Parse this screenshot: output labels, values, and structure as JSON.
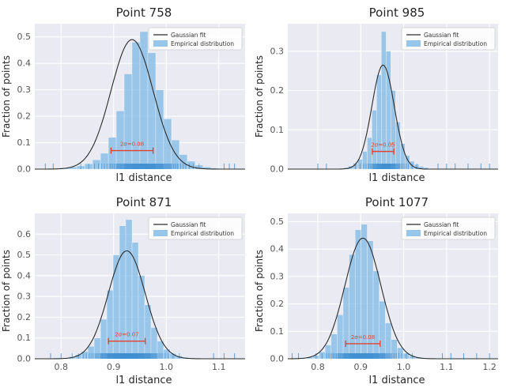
{
  "figure": {
    "xlabel": "l1 distance",
    "ylabel": "Fraction of points",
    "legend": [
      "Gaussian fit",
      "Empirical distribution"
    ],
    "colors": {
      "axes_bg": "#eaeaf2",
      "grid": "#ffffff",
      "bar": "#7db8e6",
      "bar_edge": "#ffffff",
      "line": "#2b2b2b",
      "rug": "#3f8fd2",
      "annotation": "#e0442e",
      "tick": "#555555"
    }
  },
  "chart_data": [
    {
      "type": "histogram",
      "overlay": "gaussian-line",
      "title": "Point 758",
      "xlabel": "l1 distance",
      "ylabel": "Fraction of points",
      "legend_labels": [
        "Gaussian fit",
        "Empirical distribution"
      ],
      "xlim": [
        0.75,
        1.15
      ],
      "ylim": [
        0,
        0.55
      ],
      "xticks": [
        0.8,
        0.9,
        1.0,
        1.1
      ],
      "show_xticklabels": false,
      "yticks": [
        0.0,
        0.1,
        0.2,
        0.3,
        0.4,
        0.5
      ],
      "bins": {
        "x0": 0.8,
        "width": 0.015,
        "heights": [
          0.005,
          0.008,
          0.012,
          0.02,
          0.035,
          0.06,
          0.12,
          0.22,
          0.36,
          0.48,
          0.52,
          0.44,
          0.3,
          0.19,
          0.11,
          0.055,
          0.03,
          0.015,
          0.008,
          0.004
        ]
      },
      "gaussian": {
        "amp": 0.49,
        "mean": 0.935,
        "sigma": 0.04
      },
      "annotation": {
        "label": "2σ=0.08",
        "center": 0.935,
        "halfwidth": 0.04,
        "y": 0.07
      },
      "rug_outliers": [
        0.77,
        0.785,
        1.11,
        1.12,
        1.13
      ]
    },
    {
      "type": "histogram",
      "overlay": "gaussian-line",
      "title": "Point 985",
      "xlabel": "l1 distance",
      "ylabel": "Fraction of points",
      "legend_labels": [
        "Gaussian fit",
        "Empirical distribution"
      ],
      "xlim": [
        0.73,
        1.22
      ],
      "ylim": [
        0,
        0.37
      ],
      "xticks": [
        0.8,
        0.9,
        1.0,
        1.1,
        1.2
      ],
      "show_xticklabels": false,
      "yticks": [
        0.0,
        0.1,
        0.2,
        0.3
      ],
      "bins": {
        "x0": 0.86,
        "width": 0.011,
        "heights": [
          0.004,
          0.008,
          0.015,
          0.025,
          0.045,
          0.08,
          0.15,
          0.24,
          0.35,
          0.3,
          0.2,
          0.12,
          0.065,
          0.035,
          0.02,
          0.012,
          0.007,
          0.004
        ]
      },
      "gaussian": {
        "amp": 0.265,
        "mean": 0.952,
        "sigma": 0.026
      },
      "annotation": {
        "label": "2σ=0.05",
        "center": 0.952,
        "halfwidth": 0.025,
        "y": 0.045
      },
      "rug_outliers": [
        0.8,
        0.82,
        1.08,
        1.1,
        1.12,
        1.15,
        1.18,
        1.2
      ]
    },
    {
      "type": "histogram",
      "overlay": "gaussian-line",
      "title": "Point 871",
      "xlabel": "l1 distance",
      "ylabel": "Fraction of points",
      "legend_labels": [
        "Gaussian fit",
        "Empirical distribution"
      ],
      "xlim": [
        0.75,
        1.15
      ],
      "ylim": [
        0,
        0.7
      ],
      "xticks": [
        0.8,
        0.9,
        1.0,
        1.1
      ],
      "show_xticklabels": true,
      "yticks": [
        0.0,
        0.1,
        0.2,
        0.3,
        0.4,
        0.5,
        0.6
      ],
      "bins": {
        "x0": 0.815,
        "width": 0.012,
        "heights": [
          0.01,
          0.02,
          0.035,
          0.06,
          0.1,
          0.19,
          0.33,
          0.5,
          0.64,
          0.67,
          0.56,
          0.4,
          0.26,
          0.15,
          0.085,
          0.045,
          0.025,
          0.013,
          0.007,
          0.004
        ]
      },
      "gaussian": {
        "amp": 0.52,
        "mean": 0.925,
        "sigma": 0.035
      },
      "annotation": {
        "label": "2σ=0.07",
        "center": 0.925,
        "halfwidth": 0.035,
        "y": 0.085
      },
      "rug_outliers": [
        0.78,
        0.8,
        1.09,
        1.11,
        1.13
      ]
    },
    {
      "type": "histogram",
      "overlay": "gaussian-line",
      "title": "Point 1077",
      "xlabel": "l1 distance",
      "ylabel": "Fraction of points",
      "legend_labels": [
        "Gaussian fit",
        "Empirical distribution"
      ],
      "xlim": [
        0.73,
        1.22
      ],
      "ylim": [
        0,
        0.53
      ],
      "xticks": [
        0.8,
        0.9,
        1.0,
        1.1,
        1.2
      ],
      "show_xticklabels": true,
      "yticks": [
        0.0,
        0.1,
        0.2,
        0.3,
        0.4,
        0.5
      ],
      "bins": {
        "x0": 0.775,
        "width": 0.014,
        "heights": [
          0.006,
          0.012,
          0.025,
          0.05,
          0.09,
          0.16,
          0.26,
          0.38,
          0.47,
          0.49,
          0.43,
          0.32,
          0.21,
          0.13,
          0.07,
          0.04,
          0.02,
          0.01,
          0.006,
          0.003
        ]
      },
      "gaussian": {
        "amp": 0.44,
        "mean": 0.905,
        "sigma": 0.042
      },
      "annotation": {
        "label": "2σ=0.08",
        "center": 0.905,
        "halfwidth": 0.04,
        "y": 0.055
      },
      "rug_outliers": [
        0.74,
        0.755,
        1.09,
        1.11,
        1.14,
        1.17,
        1.2
      ]
    }
  ]
}
